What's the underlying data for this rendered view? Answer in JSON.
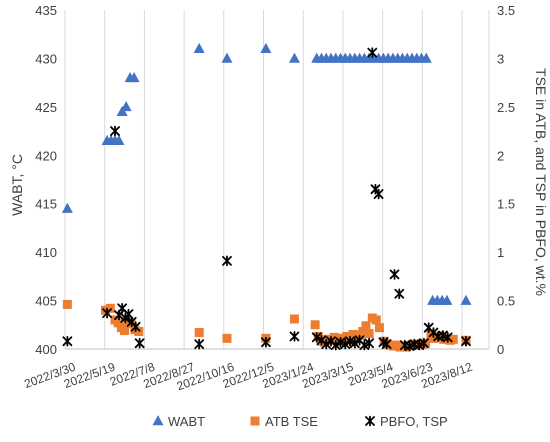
{
  "chart_data": {
    "type": "scatter",
    "x_axis": {
      "type": "date",
      "range": [
        "2022-03-30",
        "2023-09-15"
      ],
      "tick_labels": [
        "2022/3/30",
        "2022/5/19",
        "2022/7/8",
        "2022/8/27",
        "2022/10/16",
        "2022/12/5",
        "2023/1/24",
        "2023/3/15",
        "2023/5/4",
        "2023/6/23",
        "2023/8/12"
      ],
      "tick_dates": [
        "2022-03-30",
        "2022-05-19",
        "2022-07-08",
        "2022-08-27",
        "2022-10-16",
        "2022-12-05",
        "2023-01-24",
        "2023-03-15",
        "2023-05-04",
        "2023-06-23",
        "2023-08-12"
      ]
    },
    "y_left": {
      "label": "WABT, °C",
      "range": [
        400,
        435
      ],
      "ticks": [
        "400",
        "405",
        "410",
        "415",
        "420",
        "425",
        "430",
        "435"
      ]
    },
    "y_right": {
      "label": "TSE in ATB, and TSP in PBFO, wt.%",
      "range": [
        0,
        3.5
      ],
      "ticks": [
        "0",
        "0.5",
        "1",
        "1.5",
        "2",
        "2.5",
        "3",
        "3.5"
      ]
    },
    "grid": "vertical gridlines",
    "legend_position": "bottom",
    "series": [
      {
        "name": "WABT",
        "axis": "left",
        "marker": "triangle",
        "color": "#4472C4",
        "points": [
          [
            "2022-04-02",
            414.5
          ],
          [
            "2022-05-22",
            421.5
          ],
          [
            "2022-05-27",
            421.5
          ],
          [
            "2022-06-01",
            421.5
          ],
          [
            "2022-06-06",
            421.5
          ],
          [
            "2022-06-10",
            424.5
          ],
          [
            "2022-06-15",
            425
          ],
          [
            "2022-06-20",
            428
          ],
          [
            "2022-06-25",
            428
          ],
          [
            "2022-09-15",
            431
          ],
          [
            "2022-10-20",
            430
          ],
          [
            "2022-12-08",
            431
          ],
          [
            "2023-01-13",
            430
          ],
          [
            "2023-02-10",
            430
          ],
          [
            "2023-02-16",
            430
          ],
          [
            "2023-02-22",
            430
          ],
          [
            "2023-02-28",
            430
          ],
          [
            "2023-03-06",
            430
          ],
          [
            "2023-03-12",
            430
          ],
          [
            "2023-03-18",
            430
          ],
          [
            "2023-03-24",
            430
          ],
          [
            "2023-03-30",
            430
          ],
          [
            "2023-04-05",
            430
          ],
          [
            "2023-04-11",
            430
          ],
          [
            "2023-04-17",
            430
          ],
          [
            "2023-04-23",
            430
          ],
          [
            "2023-04-29",
            430
          ],
          [
            "2023-05-05",
            430
          ],
          [
            "2023-05-11",
            430
          ],
          [
            "2023-05-17",
            430
          ],
          [
            "2023-05-23",
            430
          ],
          [
            "2023-05-29",
            430
          ],
          [
            "2023-06-04",
            430
          ],
          [
            "2023-06-10",
            430
          ],
          [
            "2023-06-16",
            430
          ],
          [
            "2023-06-22",
            430
          ],
          [
            "2023-06-28",
            430
          ],
          [
            "2023-07-06",
            405
          ],
          [
            "2023-07-12",
            405
          ],
          [
            "2023-07-18",
            405
          ],
          [
            "2023-07-24",
            405
          ],
          [
            "2023-08-17",
            405
          ]
        ]
      },
      {
        "name": "ATB TSE",
        "axis": "right",
        "marker": "square",
        "color": "#ED7D31",
        "points": [
          [
            "2022-04-02",
            0.46
          ],
          [
            "2022-05-20",
            0.4
          ],
          [
            "2022-05-26",
            0.42
          ],
          [
            "2022-06-01",
            0.3
          ],
          [
            "2022-06-05",
            0.27
          ],
          [
            "2022-06-09",
            0.22
          ],
          [
            "2022-06-13",
            0.19
          ],
          [
            "2022-06-17",
            0.29
          ],
          [
            "2022-06-21",
            0.26
          ],
          [
            "2022-06-26",
            0.2
          ],
          [
            "2022-07-01",
            0.18
          ],
          [
            "2022-09-15",
            0.17
          ],
          [
            "2022-10-20",
            0.11
          ],
          [
            "2022-12-08",
            0.11
          ],
          [
            "2023-01-13",
            0.31
          ],
          [
            "2023-02-08",
            0.25
          ],
          [
            "2023-02-12",
            0.13
          ],
          [
            "2023-02-16",
            0.08
          ],
          [
            "2023-02-20",
            0.07
          ],
          [
            "2023-02-24",
            0.1
          ],
          [
            "2023-02-28",
            0.09
          ],
          [
            "2023-03-04",
            0.12
          ],
          [
            "2023-03-08",
            0.08
          ],
          [
            "2023-03-12",
            0.11
          ],
          [
            "2023-03-16",
            0.1
          ],
          [
            "2023-03-20",
            0.13
          ],
          [
            "2023-03-24",
            0.09
          ],
          [
            "2023-03-28",
            0.15
          ],
          [
            "2023-04-01",
            0.11
          ],
          [
            "2023-04-05",
            0.14
          ],
          [
            "2023-04-09",
            0.18
          ],
          [
            "2023-04-13",
            0.24
          ],
          [
            "2023-04-17",
            0.16
          ],
          [
            "2023-04-21",
            0.32
          ],
          [
            "2023-04-26",
            0.3
          ],
          [
            "2023-04-30",
            0.22
          ],
          [
            "2023-05-06",
            0.08
          ],
          [
            "2023-05-10",
            0.05
          ],
          [
            "2023-05-14",
            0.04
          ],
          [
            "2023-05-18",
            0.03
          ],
          [
            "2023-05-22",
            0.04
          ],
          [
            "2023-05-26",
            0.02
          ],
          [
            "2023-05-30",
            0.03
          ],
          [
            "2023-06-03",
            0.02
          ],
          [
            "2023-06-07",
            0.03
          ],
          [
            "2023-06-11",
            0.04
          ],
          [
            "2023-06-15",
            0.05
          ],
          [
            "2023-06-19",
            0.04
          ],
          [
            "2023-06-23",
            0.05
          ],
          [
            "2023-06-27",
            0.06
          ],
          [
            "2023-07-04",
            0.15
          ],
          [
            "2023-07-08",
            0.11
          ],
          [
            "2023-07-12",
            0.13
          ],
          [
            "2023-07-16",
            0.12
          ],
          [
            "2023-07-20",
            0.1
          ],
          [
            "2023-07-24",
            0.11
          ],
          [
            "2023-07-28",
            0.09
          ],
          [
            "2023-08-01",
            0.1
          ],
          [
            "2023-08-17",
            0.09
          ]
        ]
      },
      {
        "name": "PBFO, TSP",
        "axis": "right",
        "marker": "star",
        "color": "#000000",
        "points": [
          [
            "2022-04-02",
            0.08
          ],
          [
            "2022-05-22",
            0.37
          ],
          [
            "2022-06-01",
            2.25
          ],
          [
            "2022-06-06",
            0.35
          ],
          [
            "2022-06-10",
            0.42
          ],
          [
            "2022-06-14",
            0.32
          ],
          [
            "2022-06-18",
            0.36
          ],
          [
            "2022-06-22",
            0.28
          ],
          [
            "2022-06-27",
            0.23
          ],
          [
            "2022-07-02",
            0.06
          ],
          [
            "2022-09-15",
            0.05
          ],
          [
            "2022-10-20",
            0.91
          ],
          [
            "2022-12-08",
            0.07
          ],
          [
            "2023-01-13",
            0.13
          ],
          [
            "2023-02-10",
            0.12
          ],
          [
            "2023-02-16",
            0.09
          ],
          [
            "2023-02-22",
            0.05
          ],
          [
            "2023-02-28",
            0.08
          ],
          [
            "2023-03-06",
            0.04
          ],
          [
            "2023-03-12",
            0.07
          ],
          [
            "2023-03-18",
            0.05
          ],
          [
            "2023-03-24",
            0.08
          ],
          [
            "2023-03-30",
            0.06
          ],
          [
            "2023-04-05",
            0.09
          ],
          [
            "2023-04-11",
            0.04
          ],
          [
            "2023-04-17",
            0.06
          ],
          [
            "2023-04-21",
            3.06
          ],
          [
            "2023-04-25",
            1.65
          ],
          [
            "2023-04-29",
            1.6
          ],
          [
            "2023-05-05",
            0.07
          ],
          [
            "2023-05-09",
            0.05
          ],
          [
            "2023-05-19",
            0.77
          ],
          [
            "2023-05-25",
            0.57
          ],
          [
            "2023-06-01",
            0.04
          ],
          [
            "2023-06-07",
            0.03
          ],
          [
            "2023-06-13",
            0.05
          ],
          [
            "2023-06-19",
            0.04
          ],
          [
            "2023-06-25",
            0.06
          ],
          [
            "2023-07-01",
            0.22
          ],
          [
            "2023-07-07",
            0.17
          ],
          [
            "2023-07-13",
            0.13
          ],
          [
            "2023-07-19",
            0.14
          ],
          [
            "2023-07-25",
            0.12
          ],
          [
            "2023-08-17",
            0.08
          ]
        ]
      }
    ]
  }
}
